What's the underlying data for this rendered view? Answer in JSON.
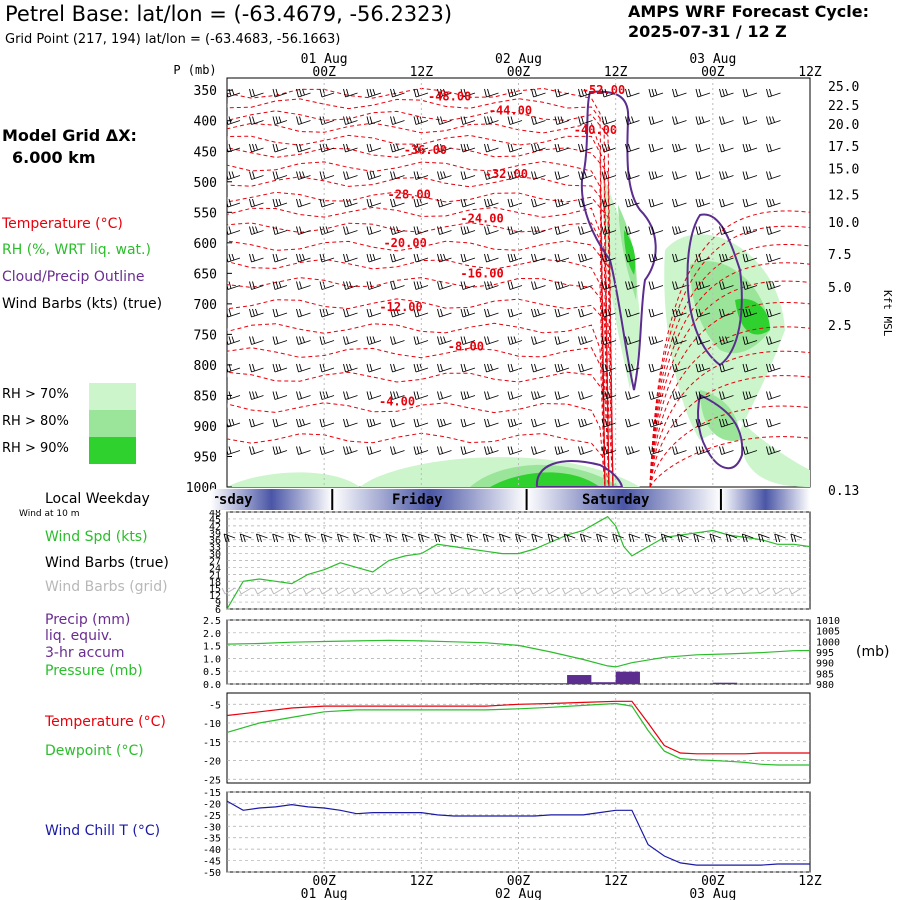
{
  "header": {
    "title": "Petrel Base:  lat/lon = (-63.4679, -56.2323)",
    "grid_point": "Grid Point (217, 194) lat/lon = (-63.4683, -56.1663)",
    "cycle_title": "AMPS WRF Forecast Cycle:",
    "cycle_value": "2025-07-31 / 12  Z"
  },
  "model_grid": {
    "label": "Model Grid ΔX:",
    "value": "6.000 km"
  },
  "legend": {
    "temperature": "Temperature (°C)",
    "rh": "RH (%, WRT liq. wat.)",
    "cloud": "Cloud/Precip Outline",
    "wind": "Wind Barbs (kts) (true)",
    "rh70": "RH > 70%",
    "rh80": "RH > 80%",
    "rh90": "RH > 90%"
  },
  "colors": {
    "temperature": "#e8000b",
    "rh70": "#ccf5cc",
    "rh80": "#9be59b",
    "rh90": "#2fd12f",
    "cloud": "#5b2d8e",
    "wind_speed": "#2bbd2b",
    "precip": "#5b2d8e",
    "pressure": "#2bbd2b",
    "dewpoint": "#2bbd2b",
    "wind_chill": "#1a1aa6",
    "day_band": "#4a56a6"
  },
  "time_axis": {
    "tick_labels": [
      "00Z",
      "12Z",
      "00Z",
      "12Z",
      "00Z",
      "12Z"
    ],
    "tick_hours": [
      12,
      24,
      36,
      48,
      60,
      72
    ],
    "date_labels": [
      "01 Aug",
      "02 Aug",
      "03 Aug"
    ],
    "date_hours": [
      12,
      36,
      60
    ],
    "range_hours": [
      0,
      72
    ]
  },
  "days": {
    "label": "Local Weekday",
    "wind_note": "Wind at 10 m",
    "names": [
      "Thursday",
      "Friday",
      "Saturday"
    ],
    "centers": [
      -1,
      23.5,
      48
    ],
    "boundaries": [
      13,
      37,
      61
    ]
  },
  "panels": {
    "wind_speed": "Wind Spd (kts)",
    "wind_barbs_true": "Wind Barbs (true)",
    "wind_barbs_grid": "Wind Barbs (grid)",
    "precip": "Precip (mm)",
    "precip_2": "liq. equiv.",
    "precip_3": "3-hr accum",
    "pressure": "Pressure (mb)",
    "pressure_unit": "(mb)",
    "temperature": "Temperature (°C)",
    "dewpoint": "Dewpoint (°C)",
    "wind_chill": "Wind Chill T (°C)"
  },
  "chart_data": [
    {
      "type": "heatmap",
      "title": "Temperature / RH / Cloud / Wind cross-section",
      "ylabel": "P (mb)",
      "ylabel_right": "Kft MSL",
      "pressure_ticks": [
        350,
        400,
        450,
        500,
        550,
        600,
        650,
        700,
        750,
        800,
        850,
        900,
        950,
        1000
      ],
      "pressure_range": [
        330,
        1000
      ],
      "height_ticks": [
        {
          "label": "25.0",
          "p": 343
        },
        {
          "label": "22.5",
          "p": 374
        },
        {
          "label": "20.0",
          "p": 405
        },
        {
          "label": "17.5",
          "p": 441
        },
        {
          "label": "15.0",
          "p": 478
        },
        {
          "label": "12.5",
          "p": 521
        },
        {
          "label": "10.0",
          "p": 566
        },
        {
          "label": "7.5",
          "p": 618
        },
        {
          "label": "5.0",
          "p": 672
        },
        {
          "label": "2.5",
          "p": 735
        },
        {
          "label": "0.13",
          "p": 1005
        }
      ],
      "isotherm_labels": [
        {
          "label": "-48.00",
          "x": 27.5,
          "p": 360
        },
        {
          "label": "-44.00",
          "x": 35,
          "p": 383
        },
        {
          "label": "-40.00",
          "x": 45.5,
          "p": 415
        },
        {
          "label": "-52.00",
          "x": 46.5,
          "p": 350
        },
        {
          "label": "-36.00",
          "x": 24.5,
          "p": 448
        },
        {
          "label": "-32.00",
          "x": 34.5,
          "p": 487
        },
        {
          "label": "-28.00",
          "x": 22.5,
          "p": 521
        },
        {
          "label": "-24.00",
          "x": 31.5,
          "p": 560
        },
        {
          "label": "-20.00",
          "x": 22,
          "p": 600
        },
        {
          "label": "-16.00",
          "x": 31.5,
          "p": 650
        },
        {
          "label": "-12.00",
          "x": 21.5,
          "p": 705
        },
        {
          "label": "-8.00",
          "x": 29.5,
          "p": 770
        },
        {
          "label": "-4.00",
          "x": 21,
          "p": 860
        }
      ]
    },
    {
      "type": "line",
      "title": "Wind Spd (kts)",
      "x": [
        0,
        2,
        4,
        6,
        8,
        10,
        12,
        14,
        16,
        18,
        20,
        22,
        24,
        26,
        28,
        30,
        32,
        34,
        36,
        38,
        40,
        42,
        44,
        46,
        47,
        48,
        49,
        50,
        52,
        54,
        56,
        58,
        60,
        62,
        64,
        66,
        68,
        70,
        72
      ],
      "y": [
        6,
        18,
        19,
        18,
        17,
        21,
        23,
        26,
        24,
        22,
        27,
        29,
        30,
        34,
        33,
        32,
        31,
        30,
        30,
        32,
        35,
        38,
        40,
        44,
        46,
        42,
        33,
        29,
        33,
        37,
        38,
        39,
        40,
        38,
        37,
        36,
        34,
        34,
        33
      ],
      "yticks": [
        6,
        9,
        12,
        15,
        18,
        21,
        24,
        27,
        30,
        33,
        36,
        39,
        42,
        45,
        48
      ],
      "ylim": [
        6,
        48
      ]
    },
    {
      "type": "bar",
      "title": "Precip (mm) liq. equiv. 3-hr accum",
      "x": [
        33,
        36,
        39,
        42,
        45,
        48,
        51,
        54,
        57,
        60,
        63,
        66
      ],
      "values": [
        0.03,
        0.03,
        0.03,
        0.03,
        0.35,
        0.07,
        0.48,
        0.0,
        0.0,
        0.0,
        0.05,
        0.0
      ],
      "yticks": [
        0.0,
        0.5,
        1.0,
        1.5,
        2.0,
        2.5
      ],
      "ylim": [
        0,
        2.5
      ]
    },
    {
      "type": "line",
      "title": "Pressure (mb)",
      "x": [
        0,
        4,
        8,
        12,
        16,
        20,
        24,
        28,
        32,
        36,
        40,
        44,
        47,
        48,
        50,
        54,
        58,
        62,
        66,
        70,
        72
      ],
      "y": [
        998.7,
        999.0,
        999.6,
        999.9,
        1000.2,
        1000.5,
        1000.2,
        999.8,
        999.3,
        998.1,
        995.0,
        991.5,
        988.5,
        988.0,
        990.0,
        992.5,
        993.7,
        994.1,
        994.7,
        995.6,
        995.7
      ],
      "yticks": [
        980,
        985,
        990,
        995,
        1000,
        1005,
        1010
      ],
      "ylim": [
        980,
        1010
      ]
    },
    {
      "type": "line",
      "title": "Temperature / Dewpoint (°C)",
      "x": [
        0,
        4,
        8,
        12,
        16,
        20,
        24,
        28,
        32,
        36,
        40,
        44,
        48,
        50,
        52,
        54,
        56,
        58,
        60,
        62,
        64,
        66,
        68,
        70,
        72
      ],
      "series": [
        {
          "name": "Temperature (°C)",
          "values": [
            -8,
            -7,
            -6,
            -5.5,
            -5.5,
            -5.5,
            -5.5,
            -5.5,
            -5.5,
            -5.0,
            -4.8,
            -4.5,
            -4.2,
            -4.2,
            -10,
            -16,
            -18,
            -18.2,
            -18.2,
            -18.2,
            -18.2,
            -18.0,
            -18.0,
            -18.0,
            -18.0
          ]
        },
        {
          "name": "Dewpoint (°C)",
          "values": [
            -12.5,
            -10,
            -8.5,
            -7,
            -6.5,
            -6.5,
            -6.5,
            -6.5,
            -6.5,
            -6.2,
            -5.8,
            -5.3,
            -4.8,
            -5.5,
            -12,
            -17.5,
            -19.5,
            -19.8,
            -20,
            -20.2,
            -20.5,
            -21,
            -21.2,
            -21.2,
            -21.2
          ]
        }
      ],
      "yticks": [
        -25,
        -20,
        -15,
        -10,
        -5
      ],
      "ylim": [
        -26,
        -2
      ]
    },
    {
      "type": "line",
      "title": "Wind Chill T (°C)",
      "x": [
        0,
        2,
        4,
        6,
        8,
        10,
        12,
        14,
        16,
        18,
        20,
        22,
        24,
        26,
        28,
        30,
        32,
        34,
        36,
        38,
        40,
        42,
        44,
        46,
        48,
        50,
        52,
        54,
        56,
        58,
        60,
        62,
        64,
        66,
        68,
        70,
        72
      ],
      "y": [
        -19,
        -23,
        -22,
        -21.5,
        -20.5,
        -21.5,
        -22,
        -23,
        -24.5,
        -24,
        -24,
        -24,
        -24,
        -25,
        -25.5,
        -25.5,
        -25.5,
        -25.5,
        -25.5,
        -25.5,
        -25,
        -25,
        -25,
        -24,
        -23,
        -23,
        -38,
        -43,
        -46,
        -47,
        -47,
        -47,
        -47,
        -47,
        -46.5,
        -46.5,
        -46.5
      ],
      "yticks": [
        -50,
        -45,
        -40,
        -35,
        -30,
        -25,
        -20,
        -15
      ],
      "ylim": [
        -50,
        -15
      ]
    }
  ]
}
